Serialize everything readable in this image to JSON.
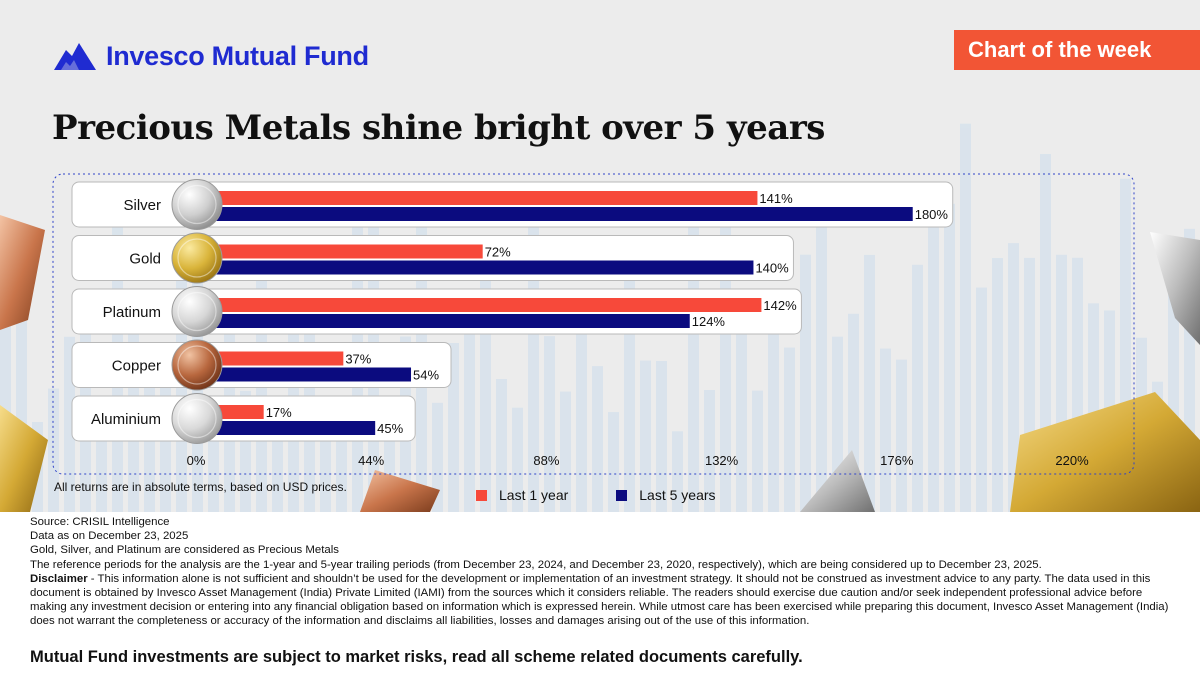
{
  "brand": {
    "name": "Invesco Mutual Fund"
  },
  "badge": {
    "label": "Chart of the week"
  },
  "title": "Precious Metals shine bright over 5 years",
  "colors": {
    "last_1_year": "#f7493a",
    "last_5_years": "#0b0b7f",
    "brand": "#1f2bd1",
    "badge": "#f25535"
  },
  "chart_data": {
    "type": "bar",
    "orientation": "horizontal",
    "title": "Precious Metals shine bright over 5 years",
    "categories": [
      "Silver",
      "Gold",
      "Platinum",
      "Copper",
      "Aluminium"
    ],
    "series": [
      {
        "name": "Last 1 year",
        "values": [
          141,
          72,
          142,
          37,
          17
        ]
      },
      {
        "name": "Last 5 years",
        "values": [
          180,
          140,
          124,
          54,
          45
        ]
      }
    ],
    "value_suffix": "%",
    "xlim": [
      0,
      220
    ],
    "x_ticks": [
      0,
      44,
      88,
      132,
      176,
      220
    ],
    "x_tick_labels": [
      "0%",
      "44%",
      "88%",
      "132%",
      "176%",
      "220%"
    ],
    "xlabel": "",
    "ylabel": "",
    "legend": "bottom-center",
    "grid": false
  },
  "chart_note": "All returns are in absolute terms, based on USD prices.",
  "footer": {
    "source": "Source: CRISIL Intelligence",
    "data_date": "Data as on December 23, 2025",
    "precious_note": "Gold, Silver, and Platinum are considered as Precious Metals",
    "reference_periods": "The reference periods for the analysis are the 1-year and 5-year trailing periods (from December 23, 2024, and December 23, 2020, respectively), which are being considered up to December 23, 2025.",
    "disclaimer_label": "Disclaimer",
    "disclaimer_text": " - This information alone is not sufficient and shouldn’t be used for the development or implementation of an investment strategy. It should not be construed as investment advice to any party. The data used in this document is obtained by Invesco Asset Management (India) Private Limited (IAMI) from the sources which it considers reliable. The readers should exercise due caution and/or seek independent professional advice before making any investment decision or entering into any financial obligation based on information which is expressed herein. While utmost care has been exercised while preparing this document, Invesco Asset Management (India) does not warrant the completeness or accuracy of the information and disclaims all liabilities, losses and damages arising out of the use of this information.",
    "risk_statement": "Mutual Fund investments are subject to market risks, read all scheme related documents carefully."
  }
}
